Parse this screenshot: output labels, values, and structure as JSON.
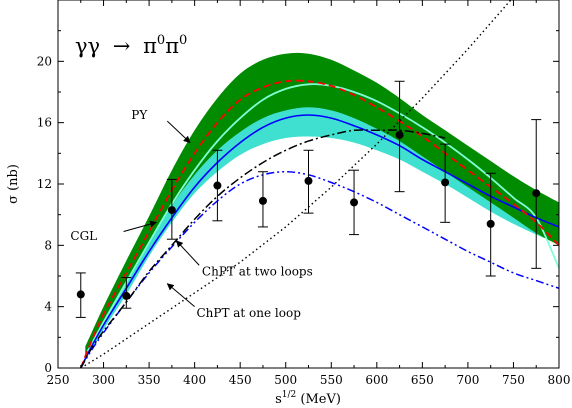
{
  "chart_data": {
    "type": "line",
    "process_label": {
      "lhs": "γγ",
      "arrow": "→",
      "pi": "π",
      "zero": "0"
    },
    "xlabel": {
      "base": "s",
      "exp": "1/2",
      "unit": " (MeV)"
    },
    "ylabel": "σ (nb)",
    "xlim": [
      250,
      800
    ],
    "ylim": [
      0,
      24
    ],
    "xticks": [
      250,
      300,
      350,
      400,
      450,
      500,
      550,
      600,
      650,
      700,
      750,
      800
    ],
    "yticks": [
      0,
      4,
      8,
      12,
      16,
      20
    ],
    "grid": false,
    "colors": {
      "band_dark": "#008b00",
      "band_light": "#40e0d0",
      "py": "#ff0000",
      "turq": "#7fffd4",
      "cgl": "#0000ff",
      "two_loop": "#0000ff",
      "cusp": "#000000",
      "one_loop": "#000000",
      "data": "#000000"
    },
    "bands": [
      {
        "id": "light",
        "x": [
          280,
          300,
          325,
          350,
          375,
          400,
          425,
          450,
          475,
          500,
          525,
          550,
          575,
          600,
          625,
          650,
          675,
          700,
          725,
          750,
          775,
          800
        ],
        "low": [
          0.5,
          2.5,
          4.8,
          7.3,
          9.5,
          11.4,
          12.8,
          13.9,
          14.6,
          15.0,
          15.1,
          15.0,
          14.7,
          14.2,
          13.6,
          12.8,
          12.0,
          11.1,
          10.2,
          9.4,
          8.7,
          8.1
        ],
        "high": [
          1.2,
          3.5,
          6.2,
          9.0,
          11.5,
          13.6,
          15.3,
          16.6,
          17.5,
          18.0,
          18.1,
          17.9,
          17.4,
          16.8,
          16.1,
          15.3,
          14.4,
          13.5,
          12.7,
          11.9,
          11.2,
          10.6
        ]
      },
      {
        "id": "dark",
        "x": [
          280,
          300,
          325,
          350,
          375,
          400,
          425,
          450,
          475,
          500,
          525,
          550,
          575,
          600,
          625,
          650,
          675,
          700,
          725,
          750,
          775,
          800
        ],
        "low": [
          0.6,
          3.1,
          5.6,
          8.2,
          10.6,
          12.6,
          14.2,
          15.4,
          16.3,
          16.8,
          17.0,
          16.8,
          16.3,
          15.6,
          14.8,
          13.8,
          12.8,
          11.8,
          10.8,
          9.8,
          8.8,
          8.0
        ],
        "high": [
          1.4,
          4.0,
          7.0,
          9.9,
          12.9,
          15.5,
          17.6,
          19.2,
          20.1,
          20.5,
          20.5,
          20.1,
          19.4,
          18.6,
          17.6,
          16.5,
          15.5,
          14.5,
          13.5,
          12.5,
          11.6,
          10.8
        ]
      }
    ],
    "series": [
      {
        "id": "cgl",
        "name": "CGL",
        "x": [
          275,
          285,
          300,
          325,
          350,
          375,
          400,
          425,
          450,
          475,
          500,
          525,
          550,
          575,
          600,
          625,
          650,
          675,
          700,
          725,
          750,
          775,
          800
        ],
        "y": [
          0.0,
          1.2,
          2.8,
          5.2,
          7.6,
          9.8,
          11.8,
          13.4,
          14.7,
          15.7,
          16.3,
          16.5,
          16.3,
          15.8,
          15.2,
          14.5,
          13.6,
          12.8,
          12.0,
          11.2,
          10.5,
          9.8,
          9.2
        ]
      },
      {
        "id": "py",
        "name": "PY",
        "x": [
          275,
          285,
          300,
          325,
          350,
          375,
          400,
          425,
          450,
          475,
          500,
          525,
          550,
          575,
          600,
          625,
          650,
          675,
          700,
          725,
          750,
          775,
          800
        ],
        "y": [
          0.0,
          1.5,
          3.5,
          6.2,
          8.9,
          11.6,
          14.0,
          16.0,
          17.5,
          18.3,
          18.7,
          18.7,
          18.4,
          17.8,
          17.0,
          16.1,
          15.1,
          14.0,
          12.9,
          11.8,
          10.7,
          9.5,
          8.0
        ]
      },
      {
        "id": "turq",
        "name": "",
        "x": [
          280,
          300,
          325,
          350,
          375,
          400,
          425,
          450,
          475,
          500,
          525,
          550,
          575,
          600,
          625,
          650,
          675,
          700,
          725,
          750,
          775,
          800
        ],
        "y": [
          0.8,
          3.0,
          5.6,
          8.2,
          10.7,
          12.9,
          14.8,
          16.3,
          17.5,
          18.2,
          18.5,
          18.4,
          18.0,
          17.4,
          16.6,
          15.7,
          14.7,
          13.6,
          12.4,
          11.1,
          9.8,
          6.5
        ]
      },
      {
        "id": "two_loop",
        "name": "ChPT at two loops",
        "x": [
          275,
          285,
          300,
          325,
          350,
          375,
          400,
          425,
          450,
          475,
          500,
          525,
          550,
          575,
          600,
          625,
          650,
          675,
          700,
          725,
          750,
          775,
          800
        ],
        "y": [
          0.0,
          1.0,
          2.3,
          4.3,
          6.2,
          7.9,
          9.5,
          10.9,
          12.0,
          12.6,
          12.8,
          12.6,
          12.1,
          11.5,
          10.8,
          10.0,
          9.2,
          8.4,
          7.6,
          6.9,
          6.2,
          5.7,
          5.2
        ]
      },
      {
        "id": "cusp",
        "name": "",
        "x": [
          275,
          285,
          300,
          325,
          350,
          375,
          400,
          425,
          450,
          475,
          500,
          525,
          550,
          575,
          600,
          625,
          650,
          675
        ],
        "y": [
          0.0,
          1.1,
          2.4,
          4.3,
          6.3,
          8.0,
          9.7,
          11.2,
          12.4,
          13.4,
          14.2,
          14.8,
          15.2,
          15.5,
          15.5,
          15.5,
          15.3,
          15.0
        ]
      },
      {
        "id": "one_loop",
        "name": "ChPT at one loop",
        "x": [
          275,
          300,
          350,
          400,
          450,
          500,
          550,
          600,
          650,
          700,
          750,
          800
        ],
        "y": [
          0.0,
          0.9,
          2.9,
          4.9,
          6.9,
          9.2,
          11.8,
          14.6,
          17.6,
          20.8,
          24.2,
          27.8
        ]
      }
    ],
    "points": [
      {
        "x": 275,
        "y": 4.8,
        "lo": 3.3,
        "hi": 6.2
      },
      {
        "x": 325,
        "y": 4.7,
        "lo": 3.9,
        "hi": 5.9
      },
      {
        "x": 375,
        "y": 10.3,
        "lo": 8.4,
        "hi": 12.3
      },
      {
        "x": 425,
        "y": 11.9,
        "lo": 9.6,
        "hi": 14.2
      },
      {
        "x": 475,
        "y": 10.9,
        "lo": 9.2,
        "hi": 12.8
      },
      {
        "x": 525,
        "y": 12.2,
        "lo": 10.1,
        "hi": 14.2
      },
      {
        "x": 575,
        "y": 10.8,
        "lo": 8.7,
        "hi": 12.9
      },
      {
        "x": 625,
        "y": 15.2,
        "lo": 11.5,
        "hi": 18.7
      },
      {
        "x": 675,
        "y": 12.1,
        "lo": 9.5,
        "hi": 14.6
      },
      {
        "x": 725,
        "y": 9.4,
        "lo": 6.0,
        "hi": 12.7
      },
      {
        "x": 775,
        "y": 11.4,
        "lo": 6.5,
        "hi": 16.2
      }
    ],
    "annotations": [
      {
        "id": "py",
        "text": "PY",
        "tx": 348,
        "ty": 16.5,
        "ax1": 370,
        "ay1": 16.1,
        "ax2": 395,
        "ay2": 14.7
      },
      {
        "id": "cgl",
        "text": "CGL",
        "tx": 293,
        "ty": 8.6,
        "ax1": 322,
        "ay1": 8.9,
        "ax2": 358,
        "ay2": 9.5
      },
      {
        "id": "two_loop",
        "text": "ChPT at two loops",
        "tx": 408,
        "ty": 6.3,
        "ax1": 405,
        "ay1": 6.7,
        "ax2": 380,
        "ay2": 8.3
      },
      {
        "id": "one_loop",
        "text": "ChPT at one loop",
        "tx": 402,
        "ty": 3.6,
        "ax1": 400,
        "ay1": 4.0,
        "ax2": 370,
        "ay2": 5.5
      }
    ]
  }
}
